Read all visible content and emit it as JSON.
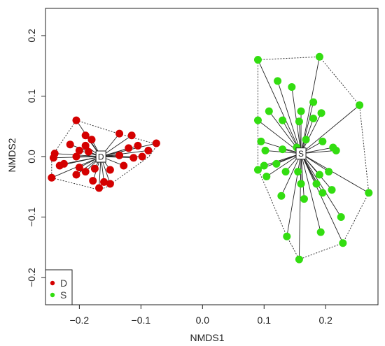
{
  "chart_data": {
    "type": "scatter",
    "title": "",
    "xlabel": "NMDS1",
    "ylabel": "NMDS2",
    "xlim": [
      -0.255,
      0.285
    ],
    "ylim": [
      -0.245,
      0.245
    ],
    "xticks": [
      -0.2,
      -0.1,
      0.0,
      0.1,
      0.2
    ],
    "xtick_labels": [
      "−0.2",
      "−0.1",
      "0.0",
      "0.1",
      "0.2"
    ],
    "yticks": [
      -0.2,
      -0.1,
      0.0,
      0.1,
      0.2
    ],
    "ytick_labels": [
      "−0.2",
      "−0.1",
      "0.0",
      "0.1",
      "0.2"
    ],
    "grid": false,
    "legend_position": "bottom-left",
    "series": [
      {
        "name": "D",
        "color": "#d40000",
        "centroid_label": "D",
        "centroid": [
          -0.165,
          0.0
        ],
        "hull": [
          [
            -0.205,
            0.06
          ],
          [
            -0.143,
            0.04
          ],
          [
            -0.073,
            0.02
          ],
          [
            -0.087,
            0.0
          ],
          [
            -0.155,
            -0.05
          ],
          [
            -0.168,
            -0.055
          ],
          [
            -0.245,
            -0.035
          ],
          [
            -0.245,
            0.0
          ]
        ],
        "points": [
          [
            -0.205,
            0.06
          ],
          [
            -0.19,
            0.035
          ],
          [
            -0.18,
            0.028
          ],
          [
            -0.135,
            0.038
          ],
          [
            -0.115,
            0.035
          ],
          [
            -0.075,
            0.022
          ],
          [
            -0.105,
            0.018
          ],
          [
            -0.098,
            0.0
          ],
          [
            -0.088,
            0.01
          ],
          [
            -0.112,
            -0.002
          ],
          [
            -0.12,
            0.014
          ],
          [
            -0.135,
            0.002
          ],
          [
            -0.215,
            0.02
          ],
          [
            -0.19,
            0.018
          ],
          [
            -0.185,
            0.008
          ],
          [
            -0.2,
            0.01
          ],
          [
            -0.24,
            0.005
          ],
          [
            -0.242,
            -0.002
          ],
          [
            -0.225,
            -0.012
          ],
          [
            -0.232,
            -0.015
          ],
          [
            -0.2,
            -0.018
          ],
          [
            -0.205,
            -0.03
          ],
          [
            -0.19,
            -0.025
          ],
          [
            -0.175,
            -0.02
          ],
          [
            -0.15,
            -0.022
          ],
          [
            -0.128,
            -0.015
          ],
          [
            -0.245,
            -0.035
          ],
          [
            -0.178,
            -0.04
          ],
          [
            -0.16,
            -0.042
          ],
          [
            -0.168,
            -0.052
          ],
          [
            -0.15,
            -0.045
          ],
          [
            -0.205,
            0.0
          ]
        ]
      },
      {
        "name": "S",
        "color": "#33dd11",
        "centroid_label": "S",
        "centroid": [
          0.16,
          0.005
        ],
        "hull": [
          [
            0.09,
            0.16
          ],
          [
            0.19,
            0.165
          ],
          [
            0.255,
            0.085
          ],
          [
            0.27,
            -0.06
          ],
          [
            0.228,
            -0.143
          ],
          [
            0.157,
            -0.17
          ],
          [
            0.137,
            -0.132
          ],
          [
            0.09,
            -0.02
          ]
        ],
        "points": [
          [
            0.09,
            0.16
          ],
          [
            0.19,
            0.165
          ],
          [
            0.122,
            0.125
          ],
          [
            0.145,
            0.115
          ],
          [
            0.18,
            0.09
          ],
          [
            0.255,
            0.085
          ],
          [
            0.108,
            0.075
          ],
          [
            0.16,
            0.075
          ],
          [
            0.193,
            0.072
          ],
          [
            0.09,
            0.06
          ],
          [
            0.13,
            0.06
          ],
          [
            0.157,
            0.058
          ],
          [
            0.18,
            0.063
          ],
          [
            0.095,
            0.025
          ],
          [
            0.168,
            0.028
          ],
          [
            0.195,
            0.025
          ],
          [
            0.102,
            0.01
          ],
          [
            0.13,
            0.012
          ],
          [
            0.153,
            0.015
          ],
          [
            0.212,
            0.015
          ],
          [
            0.217,
            0.01
          ],
          [
            0.1,
            -0.015
          ],
          [
            0.12,
            -0.012
          ],
          [
            0.09,
            -0.022
          ],
          [
            0.135,
            -0.025
          ],
          [
            0.155,
            -0.025
          ],
          [
            0.19,
            -0.03
          ],
          [
            0.205,
            -0.025
          ],
          [
            0.104,
            -0.033
          ],
          [
            0.16,
            -0.045
          ],
          [
            0.185,
            -0.045
          ],
          [
            0.21,
            -0.055
          ],
          [
            0.128,
            -0.065
          ],
          [
            0.165,
            -0.07
          ],
          [
            0.195,
            -0.06
          ],
          [
            0.27,
            -0.06
          ],
          [
            0.225,
            -0.1
          ],
          [
            0.192,
            -0.125
          ],
          [
            0.137,
            -0.132
          ],
          [
            0.228,
            -0.143
          ],
          [
            0.157,
            -0.17
          ]
        ]
      }
    ]
  }
}
